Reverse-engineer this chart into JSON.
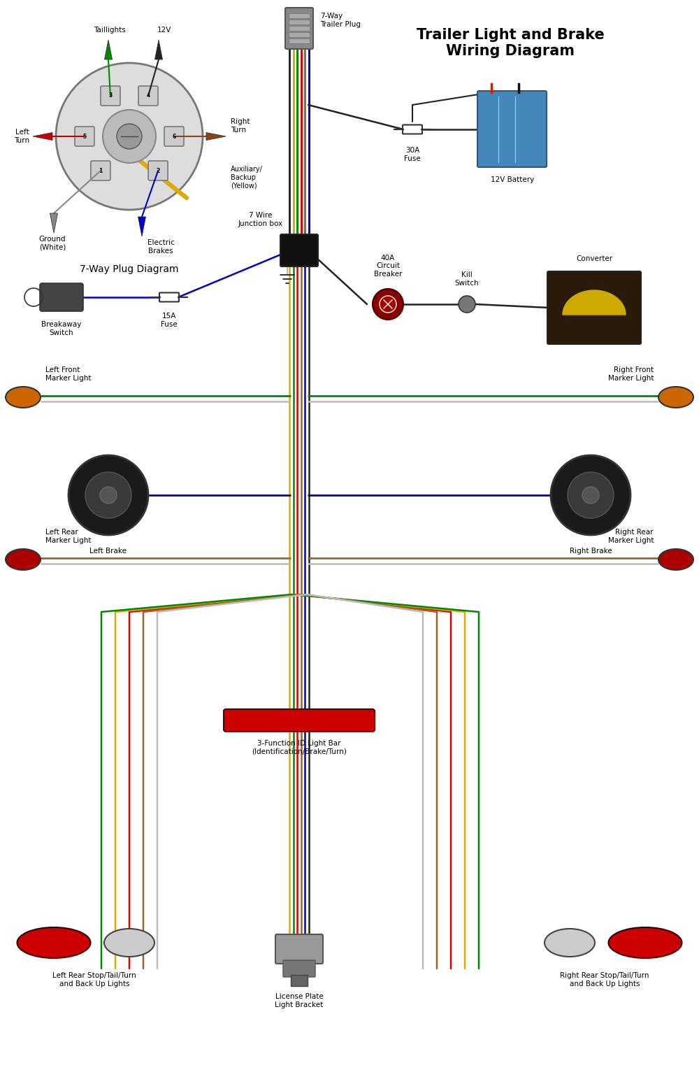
{
  "title": "Trailer Light and Brake\nWiring Diagram",
  "subtitle": "7-Way Plug Diagram",
  "plug_label": "7-Way\nTrailer Plug",
  "background_color": "#ffffff",
  "wc": {
    "green": "#008800",
    "yellow": "#DDaa00",
    "red": "#DD0000",
    "brown": "#996633",
    "blue": "#0000CC",
    "black": "#222222",
    "white": "#bbbbbb",
    "gray": "#888888"
  },
  "components": {
    "battery_label": "12V Battery",
    "fuse30_label": "30A\nFuse",
    "fuse15_label": "15A\nFuse",
    "breaker_label": "40A\nCircuit\nBreaker",
    "kill_switch_label": "Kill\nSwitch",
    "converter_label": "Converter",
    "breakaway_label": "Breakaway\nSwitch",
    "junction_label": "7 Wire\nJunction box",
    "left_front_marker": "Left Front\nMarker Light",
    "right_front_marker": "Right Front\nMarker Light",
    "left_brake": "Left Brake",
    "right_brake": "Right Brake",
    "left_rear_marker": "Left Rear\nMarker Light",
    "right_rear_marker": "Right Rear\nMarker Light",
    "id_bar_label": "3-Function ID Light Bar\n(Identification/Brake/Turn)",
    "license_label": "License Plate\nLight Bracket",
    "left_rear_stop": "Left Rear Stop/Tail/Turn\nand Back Up Lights",
    "right_rear_stop": "Right Rear Stop/Tail/Turn\nand Back Up Lights"
  },
  "pin_labels": {
    "taillights": "Taillights",
    "12v": "12V",
    "left_turn": "Left\nTurn",
    "right_turn": "Right\nTurn",
    "auxiliary": "Auxiliary/\nBackup\n(Yellow)",
    "ground": "Ground\n(White)",
    "electric_brakes": "Electric\nBrakes"
  }
}
